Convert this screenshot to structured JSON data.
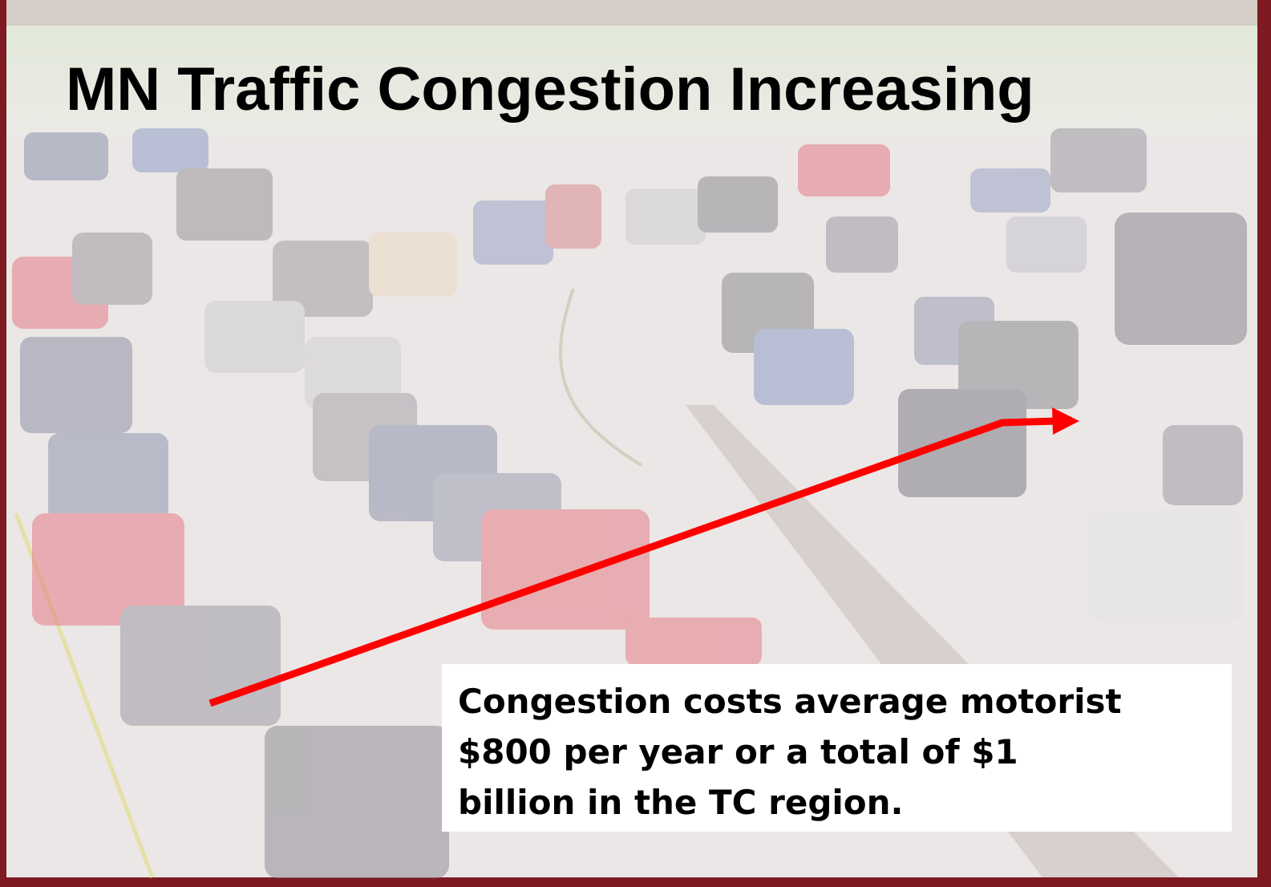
{
  "slide": {
    "title": "MN Traffic Congestion Increasing",
    "caption_lines": [
      "Congestion costs average motorist",
      "$800 per year or a total of $1",
      "billion in the TC region."
    ]
  }
}
